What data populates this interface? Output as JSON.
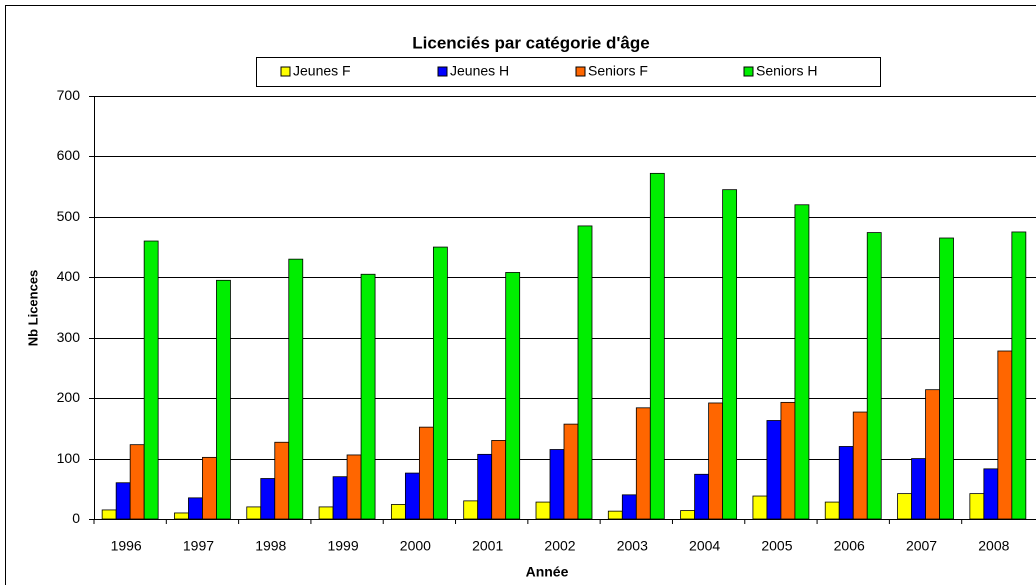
{
  "chart_data": {
    "type": "bar",
    "title": "Licenciés par catégorie d'âge",
    "x_label": "Année",
    "y_label": "Nb Licences",
    "categories": [
      "1996",
      "1997",
      "1998",
      "1999",
      "2000",
      "2001",
      "2002",
      "2003",
      "2004",
      "2005",
      "2006",
      "2007",
      "2008"
    ],
    "series": [
      {
        "name": "Jeunes F",
        "color": "#ffff00",
        "values": [
          15,
          10,
          20,
          20,
          24,
          30,
          28,
          13,
          14,
          38,
          28,
          42,
          42
        ]
      },
      {
        "name": "Jeunes H",
        "color": "#0000ff",
        "values": [
          60,
          35,
          67,
          70,
          76,
          107,
          115,
          40,
          74,
          163,
          120,
          100,
          83
        ]
      },
      {
        "name": "Seniors F",
        "color": "#ff6600",
        "values": [
          123,
          102,
          127,
          106,
          152,
          130,
          157,
          184,
          192,
          193,
          177,
          214,
          278
        ]
      },
      {
        "name": "Seniors H",
        "color": "#00ee00",
        "values": [
          460,
          395,
          430,
          405,
          450,
          408,
          485,
          572,
          545,
          520,
          474,
          465,
          475
        ]
      }
    ],
    "ylim": [
      0,
      700
    ],
    "yticks": [
      0,
      100,
      200,
      300,
      400,
      500,
      600,
      700
    ],
    "grid": true,
    "legend": "top"
  }
}
